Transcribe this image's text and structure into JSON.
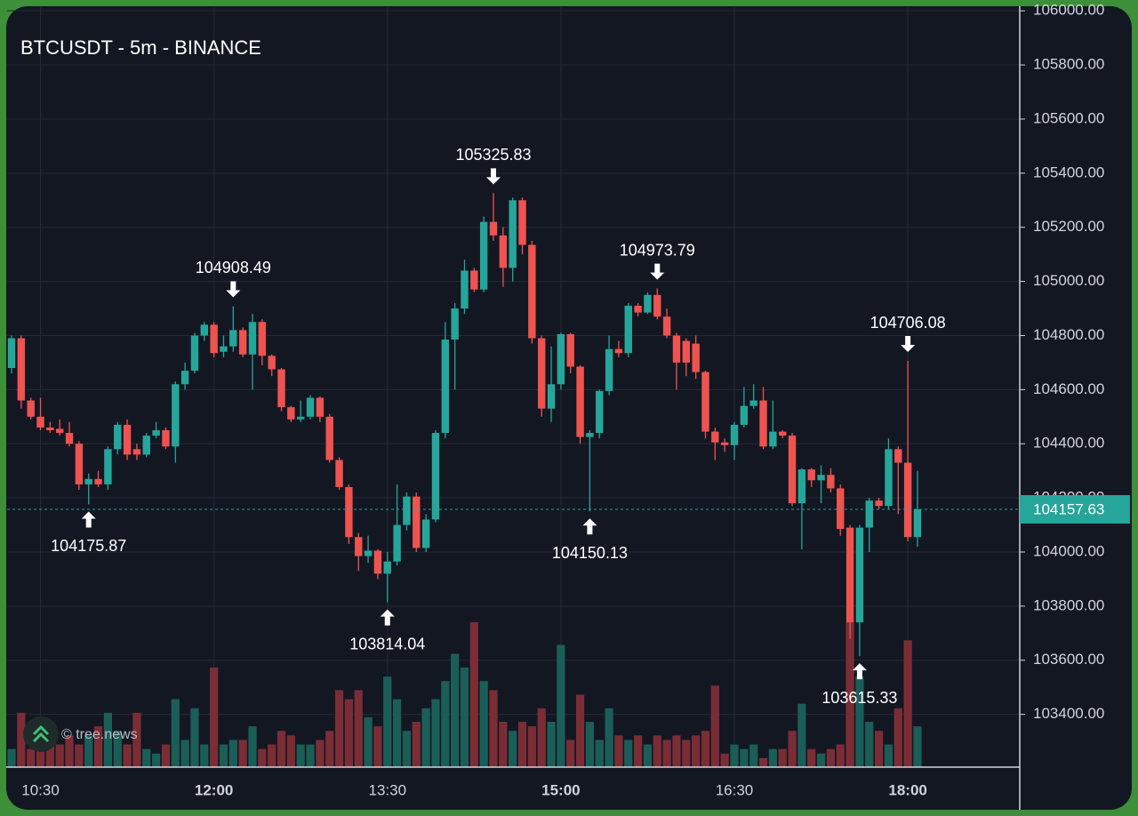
{
  "chart_data": {
    "type": "candlestick",
    "title": "BTCUSDT - 5m - BINANCE",
    "watermark": "© tree.news",
    "categories": [
      null,
      null,
      null,
      "10:30",
      null,
      null,
      null,
      null,
      null,
      null,
      null,
      null,
      null,
      null,
      null,
      null,
      null,
      null,
      null,
      null,
      null,
      "12:00",
      null,
      null,
      null,
      null,
      null,
      null,
      null,
      null,
      null,
      null,
      null,
      null,
      null,
      null,
      null,
      null,
      null,
      "13:30",
      null,
      null,
      null,
      null,
      null,
      null,
      null,
      null,
      null,
      null,
      null,
      null,
      null,
      null,
      null,
      null,
      null,
      "15:00",
      null,
      null,
      null,
      null,
      null,
      null,
      null,
      null,
      null,
      null,
      null,
      null,
      null,
      null,
      null,
      null,
      null,
      "16:30",
      null,
      null,
      null,
      null,
      null,
      null,
      null,
      null,
      null,
      null,
      null,
      null,
      null,
      null,
      null,
      null,
      null,
      "18:00",
      null
    ],
    "open": [
      104680,
      104790,
      104560,
      104500,
      104460,
      104455,
      104440,
      104400,
      104250,
      104270,
      104250,
      104380,
      104470,
      104380,
      104360,
      104430,
      104450,
      104390,
      104620,
      104670,
      104800,
      104840,
      104740,
      104760,
      104820,
      104730,
      104850,
      104725,
      104675,
      104535,
      104490,
      104500,
      104570,
      104500,
      104340,
      104240,
      104055,
      103985,
      104005,
      103920,
      103965,
      104100,
      104205,
      104015,
      104120,
      104440,
      104785,
      104900,
      105040,
      104970,
      105220,
      105170,
      105050,
      105300,
      105135,
      104790,
      104530,
      104620,
      104805,
      104685,
      104425,
      104440,
      104595,
      104750,
      104735,
      104910,
      104885,
      104950,
      104870,
      104800,
      104780,
      104770,
      104665,
      104445,
      104405,
      104395,
      104470,
      104540,
      104560,
      104390,
      104445,
      104430,
      104180,
      104305,
      104265,
      104285,
      104235,
      104090,
      103740,
      104090,
      104190,
      104170,
      104380,
      104330,
      104055
    ],
    "high": [
      104800,
      104800,
      104570,
      104570,
      104480,
      104490,
      104480,
      104410,
      104290,
      104300,
      104390,
      104480,
      104490,
      104400,
      104440,
      104480,
      104460,
      104630,
      104700,
      104810,
      104850,
      104850,
      104800,
      104908.49,
      104830,
      104880,
      104860,
      104730,
      104680,
      104540,
      104560,
      104580,
      104575,
      104510,
      104350,
      104250,
      104070,
      104060,
      104010,
      104000,
      104250,
      104220,
      104220,
      104140,
      104450,
      104850,
      104920,
      105080,
      105050,
      105240,
      105325.83,
      105200,
      105310,
      105310,
      105150,
      104800,
      104760,
      104810,
      104810,
      104690,
      104450,
      104600,
      104800,
      104780,
      104920,
      104920,
      104960,
      104973.79,
      104900,
      104810,
      104790,
      104800,
      104670,
      104460,
      104420,
      104480,
      104610,
      104620,
      104610,
      104560,
      104450,
      104440,
      104310,
      104310,
      104320,
      104310,
      104250,
      104100,
      104100,
      104200,
      104200,
      104420,
      104390,
      104706.08,
      104300
    ],
    "low": [
      104660,
      104530,
      104490,
      104450,
      104440,
      104430,
      104390,
      104230,
      104175.87,
      104240,
      104230,
      104360,
      104340,
      104340,
      104350,
      104420,
      104380,
      104330,
      104600,
      104660,
      104780,
      104720,
      104720,
      104740,
      104720,
      104600,
      104690,
      104650,
      104520,
      104480,
      104480,
      104490,
      104480,
      104330,
      104230,
      104030,
      103930,
      103960,
      103900,
      103814.04,
      103950,
      104080,
      104000,
      104000,
      104110,
      104420,
      104600,
      104880,
      104960,
      104960,
      105150,
      104980,
      105000,
      105100,
      104770,
      104500,
      104480,
      104600,
      104660,
      104400,
      104150.13,
      104420,
      104580,
      104720,
      104720,
      104870,
      104880,
      104860,
      104790,
      104600,
      104650,
      104640,
      104420,
      104340,
      104370,
      104340,
      104460,
      104530,
      104380,
      104380,
      104420,
      104170,
      104010,
      104240,
      104180,
      104220,
      104060,
      103680,
      103615.33,
      104000,
      104160,
      104160,
      104140,
      104040,
      104020
    ],
    "close": [
      104790,
      104560,
      104500,
      104460,
      104450,
      104440,
      104400,
      104250,
      104270,
      104250,
      104380,
      104470,
      104360,
      104360,
      104430,
      104450,
      104390,
      104620,
      104670,
      104800,
      104840,
      104735,
      104760,
      104820,
      104730,
      104850,
      104725,
      104675,
      104535,
      104490,
      104500,
      104570,
      104500,
      104340,
      104240,
      104055,
      103985,
      104005,
      103920,
      103965,
      104100,
      104205,
      104015,
      104120,
      104440,
      104785,
      104900,
      105040,
      104970,
      105220,
      105170,
      105050,
      105300,
      105135,
      104790,
      104530,
      104620,
      104805,
      104685,
      104425,
      104440,
      104595,
      104750,
      104735,
      104910,
      104885,
      104950,
      104870,
      104800,
      104700,
      104700,
      104665,
      104445,
      104405,
      104395,
      104470,
      104540,
      104560,
      104390,
      104445,
      104430,
      104180,
      104305,
      104265,
      104285,
      104235,
      104085,
      103740,
      104090,
      104190,
      104170,
      104380,
      104330,
      104055,
      104157.63
    ],
    "volume": [
      20,
      60,
      20,
      40,
      30,
      25,
      35,
      25,
      35,
      45,
      60,
      40,
      25,
      60,
      20,
      15,
      25,
      75,
      30,
      65,
      25,
      110,
      25,
      30,
      30,
      45,
      20,
      25,
      40,
      35,
      25,
      25,
      30,
      40,
      85,
      75,
      85,
      55,
      45,
      100,
      75,
      40,
      50,
      65,
      75,
      95,
      125,
      110,
      160,
      95,
      85,
      50,
      40,
      50,
      45,
      65,
      50,
      135,
      30,
      80,
      50,
      30,
      65,
      35,
      30,
      35,
      25,
      35,
      30,
      35,
      30,
      35,
      40,
      90,
      15,
      25,
      20,
      25,
      10,
      20,
      20,
      40,
      70,
      20,
      15,
      20,
      25,
      160,
      100,
      50,
      40,
      25,
      65,
      140,
      45
    ],
    "up_color": "#26a69a",
    "down_color": "#ef5350",
    "up_volume_color": "#1b5e58",
    "down_volume_color": "#7b2d36",
    "markers": [
      {
        "value": 104908.49,
        "side": "high"
      },
      {
        "value": 104175.87,
        "side": "low"
      },
      {
        "value": 103814.04,
        "side": "low"
      },
      {
        "value": 105325.83,
        "side": "high"
      },
      {
        "value": 104150.13,
        "side": "low"
      },
      {
        "value": 104973.79,
        "side": "high"
      },
      {
        "value": 103615.33,
        "side": "low"
      },
      {
        "value": 104706.08,
        "side": "high"
      }
    ],
    "ylim": [
      103205,
      106040
    ],
    "yticks": [
      {
        "value": 103400,
        "label": "103400.00"
      },
      {
        "value": 103600,
        "label": "103600.00"
      },
      {
        "value": 103800,
        "label": "103800.00"
      },
      {
        "value": 104000,
        "label": "104000.00"
      },
      {
        "value": 104200,
        "label": "104200.00"
      },
      {
        "value": 104400,
        "label": "104400.00"
      },
      {
        "value": 104600,
        "label": "104600.00"
      },
      {
        "value": 104800,
        "label": "104800.00"
      },
      {
        "value": 105000,
        "label": "105000.00"
      },
      {
        "value": 105200,
        "label": "105200.00"
      },
      {
        "value": 105400,
        "label": "105400.00"
      },
      {
        "value": 105600,
        "label": "105600.00"
      },
      {
        "value": 105800,
        "label": "105800.00"
      },
      {
        "value": 106000,
        "label": "106000.00"
      }
    ],
    "grid": true
  }
}
